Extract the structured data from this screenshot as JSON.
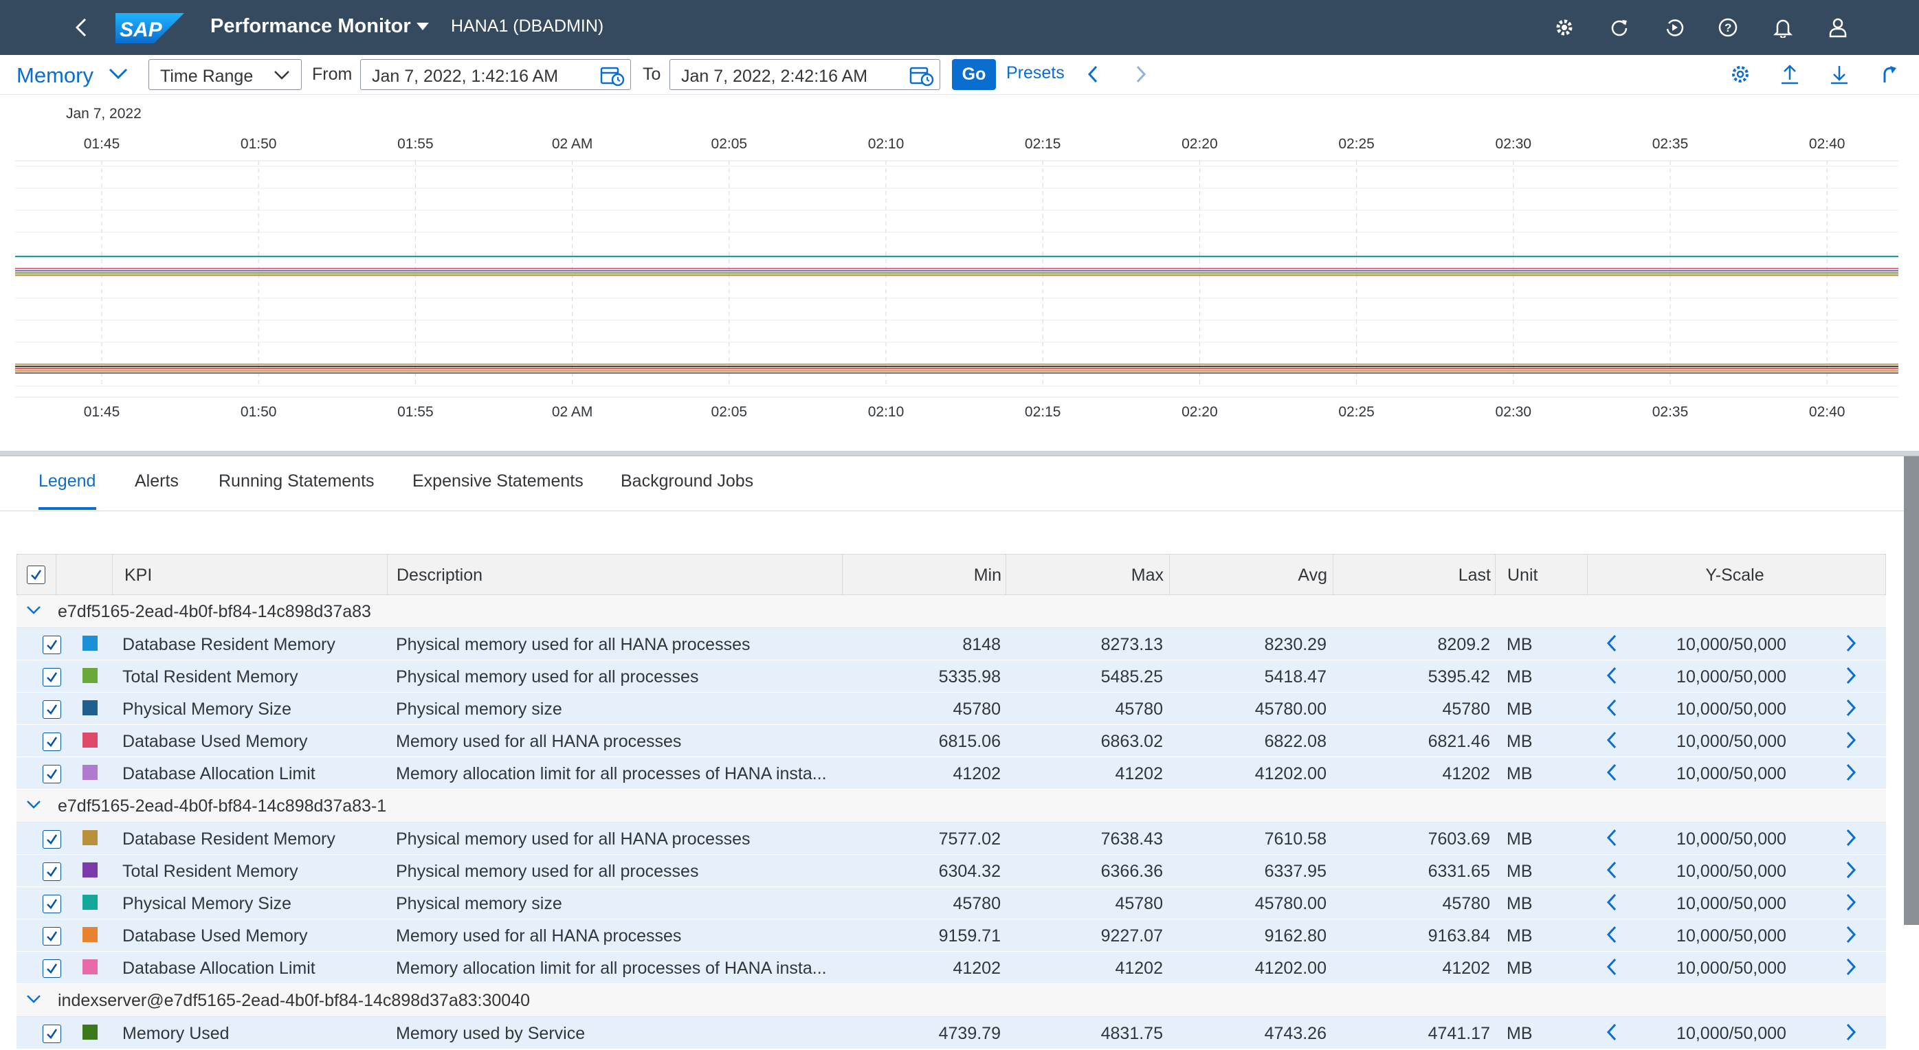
{
  "shell": {
    "title": "Performance Monitor",
    "system": "HANA1 (DBADMIN)",
    "logo_text": "SAP",
    "icons": [
      "back-icon",
      "settings-cog-icon",
      "refresh-icon",
      "replay-icon",
      "help-icon",
      "notifications-icon",
      "user-icon"
    ]
  },
  "toolbar": {
    "view": "Memory",
    "range_select": "Time Range",
    "from_label": "From",
    "from_value": "Jan 7, 2022, 1:42:16 AM",
    "to_label": "To",
    "to_value": "Jan 7, 2022, 2:42:16 AM",
    "go_label": "Go",
    "presets_label": "Presets"
  },
  "chart": {
    "date_label": "Jan 7, 2022",
    "ticks": [
      "01:45",
      "01:50",
      "01:55",
      "02 AM",
      "02:05",
      "02:10",
      "02:15",
      "02:20",
      "02:25",
      "02:30",
      "02:35",
      "02:40"
    ]
  },
  "chart_data": {
    "type": "line",
    "x": [
      "01:45",
      "01:50",
      "01:55",
      "02 AM",
      "02:05",
      "02:10",
      "02:15",
      "02:20",
      "02:25",
      "02:30",
      "02:35",
      "02:40"
    ],
    "series": [
      {
        "color": "#0e8c8c",
        "level": 0.59
      },
      {
        "color": "#e05a8a",
        "level": 0.535
      },
      {
        "color": "#8b6fbf",
        "level": 0.525
      },
      {
        "color": "#7a9b2a",
        "level": 0.515
      },
      {
        "color": "#b08a3c",
        "level": 0.505
      },
      {
        "color": "#2d2d2d",
        "level": 0.09
      },
      {
        "color": "#d04b4b",
        "level": 0.08
      },
      {
        "color": "#e8822e",
        "level": 0.07
      },
      {
        "color": "#5a6b7d",
        "level": 0.06
      },
      {
        "color": "#c7a36b",
        "level": 0.1
      }
    ]
  },
  "tabs": [
    {
      "label": "Legend"
    },
    {
      "label": "Alerts"
    },
    {
      "label": "Running Statements"
    },
    {
      "label": "Expensive Statements"
    },
    {
      "label": "Background Jobs"
    }
  ],
  "table": {
    "headers": {
      "kpi": "KPI",
      "description": "Description",
      "min": "Min",
      "max": "Max",
      "avg": "Avg",
      "last": "Last",
      "unit": "Unit",
      "yscale": "Y-Scale"
    },
    "groups": [
      {
        "name": "e7df5165-2ead-4b0f-bf84-14c898d37a83",
        "rows": [
          {
            "color": "#1b8fd8",
            "kpi": "Database Resident Memory",
            "desc": "Physical memory used for all HANA processes",
            "min": "8148",
            "max": "8273.13",
            "avg": "8230.29",
            "last": "8209.2",
            "unit": "MB",
            "yscale": "10,000/50,000"
          },
          {
            "color": "#6aa83a",
            "kpi": "Total Resident Memory",
            "desc": "Physical memory used for all processes",
            "min": "5335.98",
            "max": "5485.25",
            "avg": "5418.47",
            "last": "5395.42",
            "unit": "MB",
            "yscale": "10,000/50,000"
          },
          {
            "color": "#1f5f8f",
            "kpi": "Physical Memory Size",
            "desc": "Physical memory size",
            "min": "45780",
            "max": "45780",
            "avg": "45780.00",
            "last": "45780",
            "unit": "MB",
            "yscale": "10,000/50,000"
          },
          {
            "color": "#e04a6a",
            "kpi": "Database Used Memory",
            "desc": "Memory used for all HANA processes",
            "min": "6815.06",
            "max": "6863.02",
            "avg": "6822.08",
            "last": "6821.46",
            "unit": "MB",
            "yscale": "10,000/50,000"
          },
          {
            "color": "#b07ad0",
            "kpi": "Database Allocation Limit",
            "desc": "Memory allocation limit for all processes of HANA insta...",
            "min": "41202",
            "max": "41202",
            "avg": "41202.00",
            "last": "41202",
            "unit": "MB",
            "yscale": "10,000/50,000"
          }
        ]
      },
      {
        "name": "e7df5165-2ead-4b0f-bf84-14c898d37a83-1",
        "rows": [
          {
            "color": "#b8913a",
            "kpi": "Database Resident Memory",
            "desc": "Physical memory used for all HANA processes",
            "min": "7577.02",
            "max": "7638.43",
            "avg": "7610.58",
            "last": "7603.69",
            "unit": "MB",
            "yscale": "10,000/50,000"
          },
          {
            "color": "#7a3aa8",
            "kpi": "Total Resident Memory",
            "desc": "Physical memory used for all processes",
            "min": "6304.32",
            "max": "6366.36",
            "avg": "6337.95",
            "last": "6331.65",
            "unit": "MB",
            "yscale": "10,000/50,000"
          },
          {
            "color": "#14a89a",
            "kpi": "Physical Memory Size",
            "desc": "Physical memory size",
            "min": "45780",
            "max": "45780",
            "avg": "45780.00",
            "last": "45780",
            "unit": "MB",
            "yscale": "10,000/50,000"
          },
          {
            "color": "#e8822e",
            "kpi": "Database Used Memory",
            "desc": "Memory used for all HANA processes",
            "min": "9159.71",
            "max": "9227.07",
            "avg": "9162.80",
            "last": "9163.84",
            "unit": "MB",
            "yscale": "10,000/50,000"
          },
          {
            "color": "#e86aa8",
            "kpi": "Database Allocation Limit",
            "desc": "Memory allocation limit for all processes of HANA insta...",
            "min": "41202",
            "max": "41202",
            "avg": "41202.00",
            "last": "41202",
            "unit": "MB",
            "yscale": "10,000/50,000"
          }
        ]
      },
      {
        "name": "indexserver@e7df5165-2ead-4b0f-bf84-14c898d37a83:30040",
        "rows": [
          {
            "color": "#3a7a1a",
            "kpi": "Memory Used",
            "desc": "Memory used by Service",
            "min": "4739.79",
            "max": "4831.75",
            "avg": "4743.26",
            "last": "4741.17",
            "unit": "MB",
            "yscale": "10,000/50,000"
          }
        ]
      }
    ]
  }
}
